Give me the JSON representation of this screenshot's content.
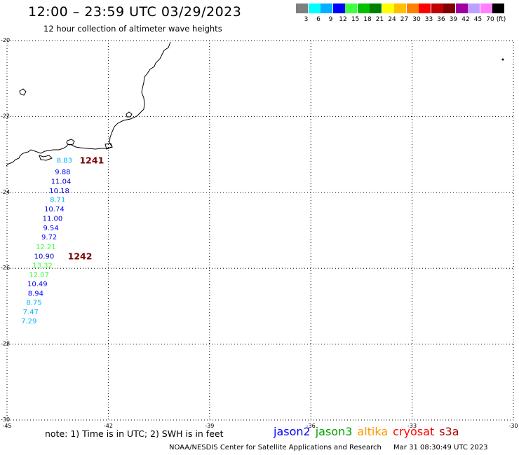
{
  "title": "12:00 – 23:59 UTC 03/29/2023",
  "subtitle": "12 hour collection of altimeter wave heights",
  "legend": {
    "labels": [
      "3",
      "6",
      "9",
      "12",
      "15",
      "18",
      "21",
      "24",
      "27",
      "30",
      "33",
      "36",
      "39",
      "42",
      "45",
      "70"
    ],
    "unit": "(ft)",
    "colors": [
      "#7f7f7f",
      "#00ffff",
      "#00b0ff",
      "#0000ff",
      "#40ff40",
      "#00c000",
      "#008000",
      "#ffff00",
      "#ffc000",
      "#ff8000",
      "#ff0000",
      "#c00000",
      "#800000",
      "#a000a0",
      "#c0a0ff",
      "#ff80ff",
      "#000000"
    ]
  },
  "map": {
    "lon_range": [
      -45,
      -30
    ],
    "lat_range": [
      -30,
      -20
    ],
    "lon_ticks": [
      -45,
      -42,
      -39,
      -36,
      -33,
      -30
    ],
    "lat_ticks": [
      -20,
      -22,
      -24,
      -26,
      -28,
      -30
    ]
  },
  "observations": [
    {
      "value": "8.83",
      "lon": -43.3,
      "lat": -23.15,
      "color": "#00b0ff"
    },
    {
      "value": "9.88",
      "lon": -43.35,
      "lat": -23.45,
      "color": "#0000ff"
    },
    {
      "value": "11.04",
      "lon": -43.4,
      "lat": -23.7,
      "color": "#0000c0"
    },
    {
      "value": "10.18",
      "lon": -43.45,
      "lat": -23.95,
      "color": "#0000ff"
    },
    {
      "value": "8.71",
      "lon": -43.5,
      "lat": -24.18,
      "color": "#00b0ff"
    },
    {
      "value": "10.74",
      "lon": -43.6,
      "lat": -24.43,
      "color": "#0000ff"
    },
    {
      "value": "11.00",
      "lon": -43.65,
      "lat": -24.68,
      "color": "#0000c0"
    },
    {
      "value": "9.54",
      "lon": -43.7,
      "lat": -24.93,
      "color": "#0000ff"
    },
    {
      "value": "9.72",
      "lon": -43.75,
      "lat": -25.17,
      "color": "#0000ff"
    },
    {
      "value": "12.21",
      "lon": -43.85,
      "lat": -25.42,
      "color": "#40ff40"
    },
    {
      "value": "10.90",
      "lon": -43.9,
      "lat": -25.67,
      "color": "#0000c0"
    },
    {
      "value": "13.32",
      "lon": -43.95,
      "lat": -25.91,
      "color": "#40ff40"
    },
    {
      "value": "12.07",
      "lon": -44.05,
      "lat": -26.16,
      "color": "#40ff40"
    },
    {
      "value": "10.49",
      "lon": -44.1,
      "lat": -26.4,
      "color": "#0000ff"
    },
    {
      "value": "8.94",
      "lon": -44.15,
      "lat": -26.65,
      "color": "#0000ff"
    },
    {
      "value": "8.75",
      "lon": -44.2,
      "lat": -26.89,
      "color": "#00b0ff"
    },
    {
      "value": "7.47",
      "lon": -44.3,
      "lat": -27.14,
      "color": "#00b0ff"
    },
    {
      "value": "7.29",
      "lon": -44.35,
      "lat": -27.38,
      "color": "#00b0ff"
    }
  ],
  "passes": [
    {
      "label": "1241",
      "lon": -42.85,
      "lat": -23.15
    },
    {
      "label": "1242",
      "lon": -43.2,
      "lat": -25.67
    }
  ],
  "note": "note:  1) Time is in UTC;  2) SWH is in feet",
  "satellites": [
    {
      "name": "jason2",
      "color": "#0000ff"
    },
    {
      "name": "jason3",
      "color": "#00a000"
    },
    {
      "name": "altika",
      "color": "#ff9900"
    },
    {
      "name": "cryosat",
      "color": "#ff0000"
    },
    {
      "name": "s3a",
      "color": "#aa0000"
    }
  ],
  "footer": {
    "org": "NOAA/NESDIS Center for Satellite Applications and Research",
    "timestamp": "Mar 31 08:30:49 UTC 2023"
  }
}
